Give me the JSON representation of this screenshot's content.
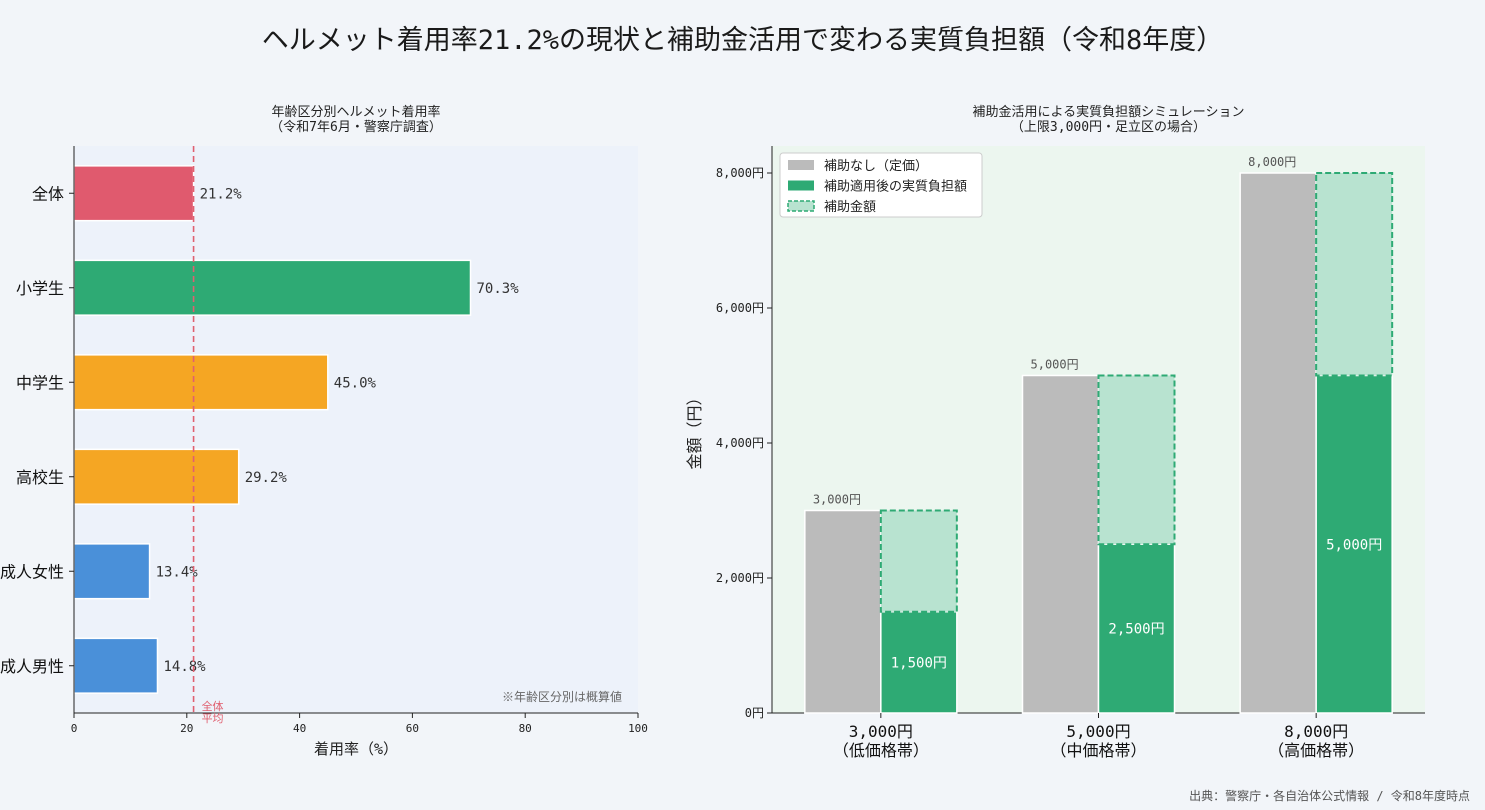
{
  "page": {
    "title": "ヘルメット着用率21.2%の現状と補助金活用で変わる実質負担額（令和8年度）",
    "source": "出典：警察庁・各自治体公式情報 / 令和8年度時点"
  },
  "colors": {
    "all": "#e05a6e",
    "elementary": "#2eaa74",
    "teen": "#f5a623",
    "adult": "#4a90d9",
    "avg_line": "#e06070",
    "no_subsidy": "#bbbbbb",
    "after_subsidy": "#2eaa74",
    "subsidy": "#b8e3d0",
    "left_bg": "#edf2fa",
    "right_bg": "#ecf6ef"
  },
  "chart_data": [
    {
      "type": "bar",
      "orientation": "horizontal",
      "title_line1": "年齢区分別ヘルメット着用率",
      "title_line2": "（令和7年6月・警察庁調査）",
      "categories": [
        "全体",
        "小学生",
        "中学生",
        "高校生",
        "成人女性",
        "成人男性"
      ],
      "values": [
        21.2,
        70.3,
        45.0,
        29.2,
        13.4,
        14.8
      ],
      "value_labels": [
        "21.2%",
        "70.3%",
        "45.0%",
        "29.2%",
        "13.4%",
        "14.8%"
      ],
      "bar_colors": [
        "all",
        "elementary",
        "teen",
        "teen",
        "adult",
        "adult"
      ],
      "xlabel": "着用率（%）",
      "xlim": [
        0,
        100
      ],
      "xticks": [
        0,
        20,
        40,
        60,
        80,
        100
      ],
      "reference_line": {
        "value": 21.2,
        "label_line1": "全体",
        "label_line2": "平均"
      },
      "note": "※年齢区分別は概算値"
    },
    {
      "type": "bar",
      "title_line1": "補助金活用による実質負担額シミュレーション",
      "title_line2": "（上限3,000円・足立区の場合）",
      "categories": [
        {
          "line1": "3,000円",
          "line2": "（低価格帯）"
        },
        {
          "line1": "5,000円",
          "line2": "（中価格帯）"
        },
        {
          "line1": "8,000円",
          "line2": "（高価格帯）"
        }
      ],
      "series": [
        {
          "name": "補助なし（定価）",
          "values": [
            3000,
            5000,
            8000
          ],
          "labels": [
            "3,000円",
            "5,000円",
            "8,000円"
          ]
        },
        {
          "name": "補助適用後の実質負担額",
          "values": [
            1500,
            2500,
            5000
          ],
          "labels": [
            "1,500円",
            "2,500円",
            "5,000円"
          ]
        },
        {
          "name": "補助金額",
          "values": [
            1500,
            2500,
            3000
          ]
        }
      ],
      "ylabel": "金額（円）",
      "ylim": [
        0,
        8400
      ],
      "yticks": [
        0,
        2000,
        4000,
        6000,
        8000
      ],
      "ytick_labels": [
        "0円",
        "2,000円",
        "4,000円",
        "6,000円",
        "8,000円"
      ],
      "legend_position": "top-left"
    }
  ]
}
